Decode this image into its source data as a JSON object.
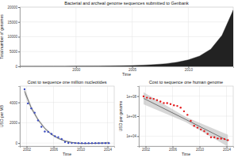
{
  "chart_data": [
    {
      "type": "area",
      "title": "Bacterial and archeal genome sequences submitted to Genbank",
      "x_label": "Time",
      "y_label": "Total number of genomes",
      "x": [
        1995,
        1996,
        1997,
        1998,
        1999,
        2000,
        2001,
        2002,
        2003,
        2004,
        2005,
        2006,
        2007,
        2008,
        2009,
        2010,
        2011,
        2012,
        2013,
        2014
      ],
      "values": [
        2,
        4,
        10,
        16,
        24,
        40,
        60,
        90,
        130,
        190,
        280,
        420,
        620,
        900,
        1400,
        2200,
        3500,
        5800,
        10500,
        19000
      ],
      "color": "#222222",
      "xlim": [
        1995,
        2014
      ],
      "xticks": [
        2000,
        2005,
        2010
      ],
      "ylim": [
        0,
        20000
      ],
      "yticks": [
        0,
        5000,
        10000,
        15000,
        20000
      ],
      "grid": true
    },
    {
      "type": "scatter",
      "title": "Cost to sequence one million nucleotides",
      "x_label": "Time",
      "y_label": "USD per MB",
      "x": [
        2001.7,
        2002.2,
        2002.7,
        2003.2,
        2003.7,
        2004.2,
        2004.7,
        2005.2,
        2005.7,
        2006.2,
        2006.7,
        2007.2,
        2007.7,
        2008.2,
        2008.7,
        2009.2,
        2009.7,
        2010.2,
        2010.7,
        2011.2,
        2011.7,
        2012.2,
        2012.7,
        2013.2,
        2013.7,
        2014.2
      ],
      "values": [
        5292,
        3898,
        3413,
        2986,
        2230,
        1598,
        1135,
        1107,
        898,
        681,
        581,
        397,
        102,
        16,
        3.8,
        1.6,
        0.7,
        0.5,
        0.3,
        0.2,
        0.1,
        0.09,
        0.09,
        0.06,
        0.06,
        0.05
      ],
      "color": "#3b4cc0",
      "marker": "circle",
      "fit": {
        "x": [
          2001.7,
          2002.7,
          2003.7,
          2004.7,
          2005.7,
          2006.7,
          2007.7,
          2008.7,
          2009.7,
          2010.7,
          2011.7,
          2012.7,
          2013.7,
          2014.2
        ],
        "values": [
          5100,
          3450,
          2300,
          1450,
          850,
          460,
          210,
          60,
          -20,
          -40,
          -30,
          -10,
          10,
          25
        ],
        "lower": [
          4750,
          3250,
          2150,
          1330,
          760,
          380,
          140,
          -10,
          -80,
          -100,
          -95,
          -80,
          -70,
          -90
        ],
        "upper": [
          5450,
          3650,
          2450,
          1570,
          940,
          540,
          280,
          130,
          40,
          20,
          35,
          60,
          90,
          140
        ]
      },
      "xlim": [
        2001,
        2015
      ],
      "xticks": [
        2002,
        2006,
        2010,
        2014
      ],
      "ylim": [
        -300,
        5600
      ],
      "yticks": [
        0,
        2000,
        4000
      ],
      "grid": true
    },
    {
      "type": "scatter",
      "title": "Cost to sequence one human genome",
      "x_label": "Time",
      "y_label": "USD per genome",
      "x": [
        2001.7,
        2002.2,
        2002.7,
        2003.2,
        2003.7,
        2004.2,
        2004.7,
        2005.2,
        2005.7,
        2006.2,
        2006.7,
        2007.2,
        2007.7,
        2008.2,
        2008.7,
        2009.2,
        2009.7,
        2010.2,
        2010.7,
        2011.2,
        2011.7,
        2012.2,
        2012.7,
        2013.2,
        2013.7,
        2014.2
      ],
      "values": [
        95263072,
        70175437,
        61448422,
        53751684,
        40157554,
        28780376,
        20442576,
        19934346,
        16163174,
        12270000,
        10474556,
        7147571,
        3063820,
        1352982,
        342502,
        108065,
        70333,
        46774,
        31512,
        16712,
        7743,
        7666,
        5901,
        5671,
        5096,
        4008
      ],
      "color": "#e41a1c",
      "marker": "circle",
      "fit": {
        "x": [
          2001.7,
          2008,
          2014.2
        ],
        "values": [
          60000000,
          450000,
          3500
        ],
        "lower": [
          15000000,
          250000,
          900
        ],
        "upper": [
          240000000,
          800000,
          14000
        ]
      },
      "xlim": [
        2001,
        2015
      ],
      "xticks": [
        2002,
        2006,
        2010,
        2014
      ],
      "ylim": [
        1000,
        1000000000
      ],
      "yticks": [
        {
          "value": 10000,
          "label": "1e+04"
        },
        {
          "value": 1000000,
          "label": "1e+06"
        },
        {
          "value": 100000000,
          "label": "1e+08"
        }
      ],
      "log": "y",
      "grid": true
    }
  ]
}
